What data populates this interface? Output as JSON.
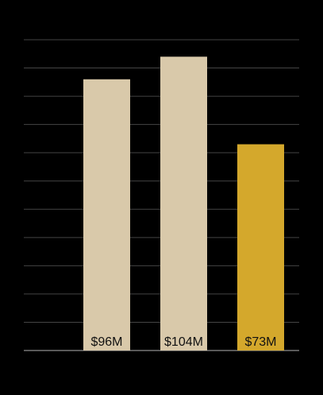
{
  "chart_data": {
    "type": "bar",
    "values": [
      96,
      104,
      73
    ],
    "value_labels": [
      "$96M",
      "$104M",
      "$73M"
    ],
    "colors": [
      "#d9c9aa",
      "#d9c9aa",
      "#d4a82c"
    ],
    "ylim": [
      0,
      110
    ],
    "yticks": [
      0,
      10,
      20,
      30,
      40,
      50,
      60,
      70,
      80,
      90,
      100,
      110
    ],
    "grid": true
  }
}
